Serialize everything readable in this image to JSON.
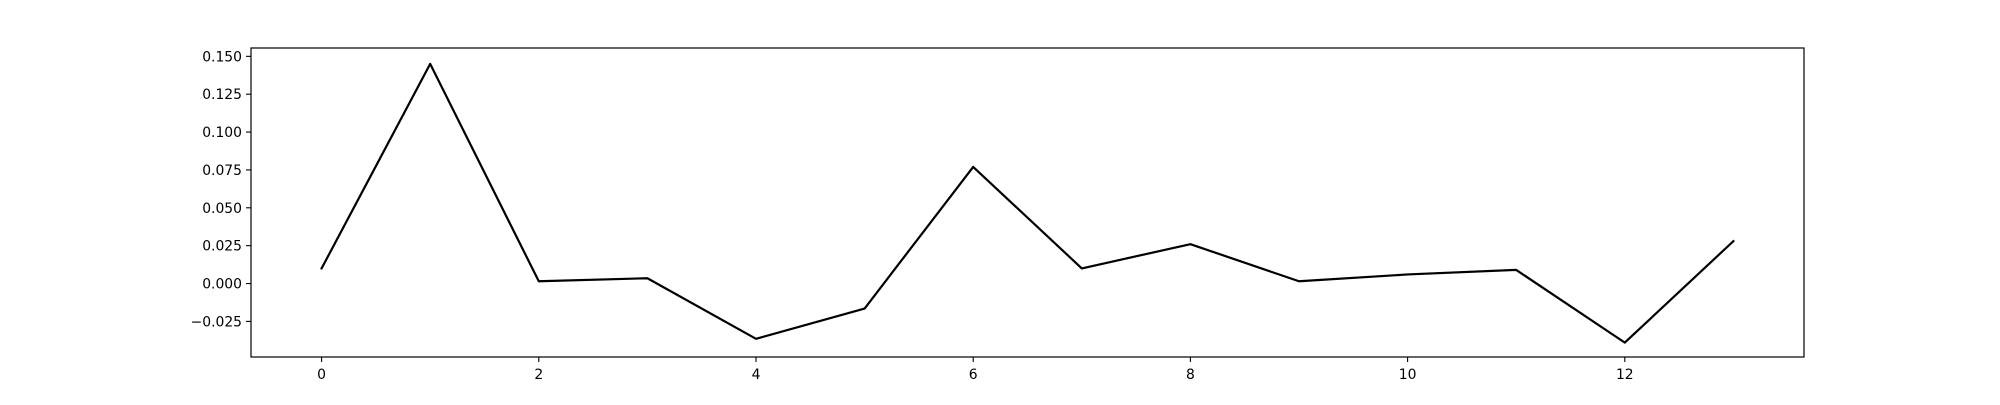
{
  "chart_data": {
    "type": "line",
    "title": "",
    "xlabel": "",
    "ylabel": "",
    "xlim": [
      -0.65,
      13.65
    ],
    "ylim": [
      -0.0485,
      0.1555
    ],
    "x_ticks": [
      0,
      2,
      4,
      6,
      8,
      10,
      12
    ],
    "x_tick_labels": [
      "0",
      "2",
      "4",
      "6",
      "8",
      "10",
      "12"
    ],
    "y_ticks": [
      -0.025,
      0.0,
      0.025,
      0.05,
      0.075,
      0.1,
      0.125,
      0.15
    ],
    "y_tick_labels": [
      "−0.025",
      "0.000",
      "0.025",
      "0.050",
      "0.075",
      "0.100",
      "0.125",
      "0.150"
    ],
    "grid": false,
    "series": [
      {
        "color": "#000000",
        "x": [
          0,
          1,
          2,
          3,
          4,
          5,
          6,
          7,
          8,
          9,
          10,
          11,
          12,
          13
        ],
        "y": [
          0.01,
          0.145,
          0.0015,
          0.0035,
          -0.0365,
          -0.0165,
          0.077,
          0.01,
          0.026,
          0.0015,
          0.006,
          0.009,
          -0.039,
          0.028
        ]
      }
    ]
  }
}
